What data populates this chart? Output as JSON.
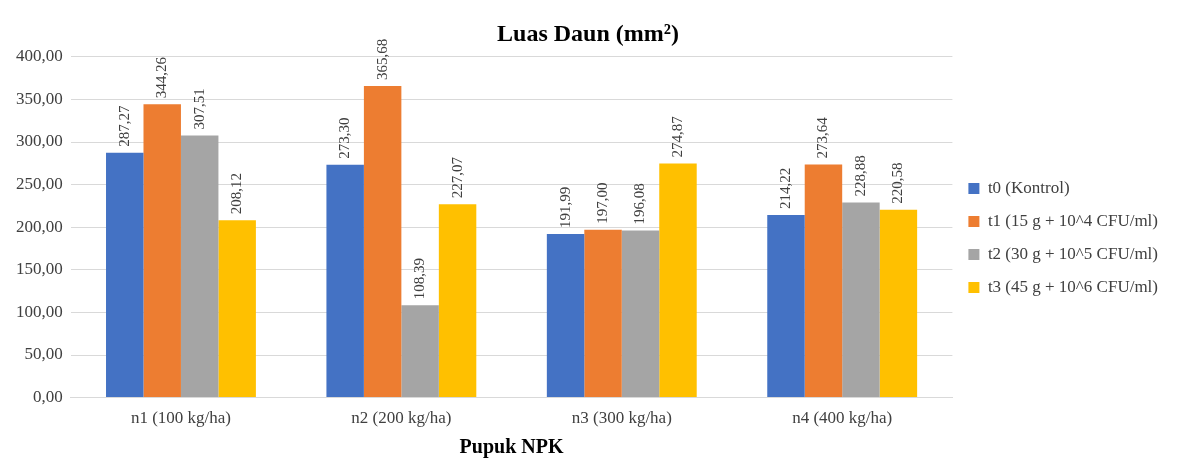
{
  "chart_data": {
    "type": "bar",
    "title": "Luas Daun (mm²)",
    "xlabel": "Pupuk NPK",
    "categories": [
      "n1 (100 kg/ha)",
      "n2 (200 kg/ha)",
      "n3 (300 kg/ha)",
      "n4 (400 kg/ha)"
    ],
    "series": [
      {
        "name": "t0 (Kontrol)",
        "color": "#4472c4",
        "values": [
          287.27,
          273.3,
          191.99,
          214.22
        ],
        "value_labels": [
          "287,27",
          "273,30",
          "191,99",
          "214,22"
        ]
      },
      {
        "name": "t1 (15 g + 10^4 CFU/ml)",
        "color": "#ed7d31",
        "values": [
          344.26,
          365.68,
          197.0,
          273.64
        ],
        "value_labels": [
          "344,26",
          "365,68",
          "197,00",
          "273,64"
        ]
      },
      {
        "name": "t2 (30 g + 10^5 CFU/ml)",
        "color": "#a5a5a5",
        "values": [
          307.51,
          108.39,
          196.08,
          228.88
        ],
        "value_labels": [
          "307,51",
          "108,39",
          "196,08",
          "228,88"
        ]
      },
      {
        "name": "t3 (45 g + 10^6 CFU/ml)",
        "color": "#ffc000",
        "values": [
          208.12,
          227.07,
          274.87,
          220.58
        ],
        "value_labels": [
          "208,12",
          "227,07",
          "274,87",
          "220,58"
        ]
      }
    ],
    "ylim": [
      0,
      400
    ],
    "yticks": [
      {
        "value": 0,
        "label": "0,00"
      },
      {
        "value": 50,
        "label": "50,00"
      },
      {
        "value": 100,
        "label": "100,00"
      },
      {
        "value": 150,
        "label": "150,00"
      },
      {
        "value": 200,
        "label": "200,00"
      },
      {
        "value": 250,
        "label": "250,00"
      },
      {
        "value": 300,
        "label": "300,00"
      },
      {
        "value": 350,
        "label": "350,00"
      },
      {
        "value": 400,
        "label": "400,00"
      }
    ],
    "grid": "y",
    "legend": "right"
  }
}
